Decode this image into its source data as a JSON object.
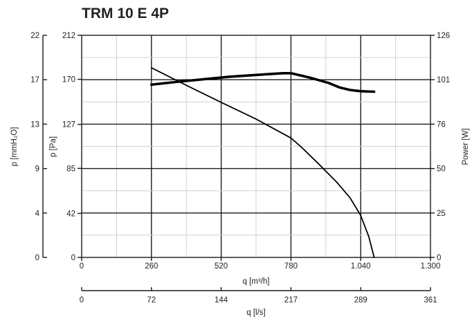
{
  "chart_data": {
    "type": "line",
    "title": "TRM 10 E 4P",
    "axes": {
      "x_primary": {
        "label": "q [m³/h]",
        "ticks": [
          0,
          260,
          520,
          780,
          1040,
          1300
        ],
        "tick_labels": [
          "0",
          "260",
          "520",
          "780",
          "1.040",
          "1.300"
        ],
        "range": [
          0,
          1300
        ]
      },
      "x_secondary": {
        "label": "q [l/s]",
        "ticks": [
          0,
          72,
          144,
          217,
          289,
          361
        ],
        "tick_labels": [
          "0",
          "72",
          "144",
          "217",
          "289",
          "361"
        ],
        "range": [
          0,
          361
        ]
      },
      "y_left_outer": {
        "label": "p [mmH₂O]",
        "tick_labels": [
          "0",
          "4",
          "9",
          "13",
          "17",
          "22"
        ]
      },
      "y_left_inner": {
        "label": "p [Pa]",
        "ticks": [
          0,
          42,
          85,
          127,
          170,
          212
        ],
        "tick_labels": [
          "0",
          "42",
          "85",
          "127",
          "170",
          "212"
        ],
        "range": [
          0,
          212
        ]
      },
      "y_right": {
        "label": "Power [W]",
        "tick_labels": [
          "0",
          "25",
          "50",
          "76",
          "101",
          "126"
        ],
        "range": [
          0,
          126
        ]
      }
    },
    "grid": true,
    "series": [
      {
        "axis": "pressure",
        "unit": "Pa",
        "x": [
          260,
          400,
          520,
          650,
          780,
          820,
          880,
          950,
          1000,
          1040,
          1070,
          1090
        ],
        "y": [
          181,
          163,
          148,
          132,
          114,
          105,
          90,
          72,
          57,
          40,
          20,
          0
        ]
      },
      {
        "axis": "power",
        "unit": "W",
        "x": [
          260,
          350,
          450,
          550,
          650,
          750,
          780,
          850,
          920,
          960,
          1000,
          1040,
          1090
        ],
        "y": [
          98,
          99.5,
          101,
          102.5,
          103.5,
          104.5,
          104.5,
          102,
          99,
          96.5,
          95,
          94.3,
          94
        ]
      }
    ]
  }
}
